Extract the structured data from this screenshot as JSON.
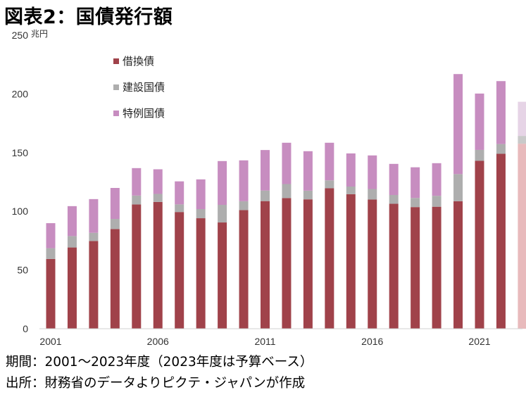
{
  "title": "図表2：国債発行額",
  "chart_data": {
    "type": "bar",
    "stacked": true,
    "unit": "兆円",
    "years": [
      2001,
      2002,
      2003,
      2004,
      2005,
      2006,
      2007,
      2008,
      2009,
      2010,
      2011,
      2012,
      2013,
      2014,
      2015,
      2016,
      2017,
      2018,
      2019,
      2020,
      2021,
      2022,
      2023
    ],
    "x_tick_labels": [
      "2001",
      "2006",
      "2011",
      "2016",
      "2021"
    ],
    "ylim": [
      0,
      250
    ],
    "y_ticks": [
      0,
      50,
      100,
      150,
      200,
      250
    ],
    "series": [
      {
        "name": "借換債",
        "color": "#A0424A",
        "values": [
          59.4,
          69.2,
          74.7,
          84.9,
          105.8,
          108.0,
          99.4,
          94.1,
          90.5,
          101.0,
          108.7,
          111.3,
          110.2,
          119.6,
          114.6,
          110.0,
          106.4,
          103.6,
          103.9,
          108.6,
          143.0,
          149.0,
          157.6
        ]
      },
      {
        "name": "建設国債",
        "color": "#AEAEAE",
        "values": [
          9.2,
          9.7,
          7.0,
          8.6,
          7.6,
          6.8,
          6.5,
          7.8,
          15.0,
          7.6,
          9.0,
          11.9,
          7.4,
          6.8,
          6.5,
          9.0,
          7.5,
          7.8,
          9.3,
          23.1,
          9.3,
          8.3,
          6.6
        ]
      },
      {
        "name": "特例国債",
        "color": "#C78DC0",
        "values": [
          21.3,
          25.5,
          28.7,
          26.4,
          23.4,
          21.0,
          19.6,
          25.3,
          37.3,
          34.8,
          34.5,
          35.2,
          33.6,
          32.0,
          28.2,
          28.6,
          26.5,
          26.1,
          27.8,
          85.2,
          48.0,
          53.6,
          29.1
        ]
      }
    ],
    "budget_year": 2023,
    "budget_colors": [
      "#E8BABC",
      "#C9C9C9",
      "#E6D4E6"
    ],
    "legend_position": "top-left",
    "grid": false
  },
  "notes": {
    "period": "期間：2001～2023年度（2023年度は予算ベース）",
    "source": "出所：財務省のデータよりピクテ・ジャパンが作成"
  }
}
